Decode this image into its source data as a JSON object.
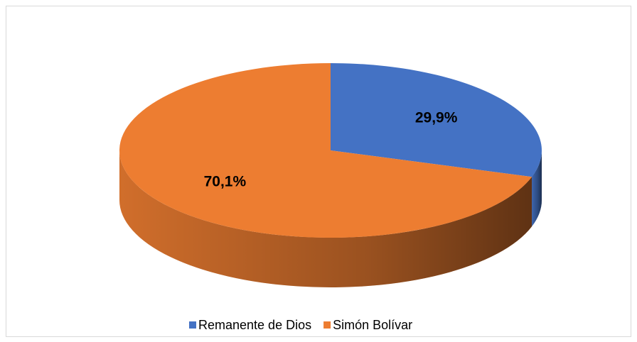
{
  "chart_data": {
    "type": "pie",
    "categories": [
      "Remanente de Dios",
      "Simón Bolívar"
    ],
    "values": [
      29.9,
      70.1
    ],
    "value_labels": [
      "29,9%",
      "70,1%"
    ],
    "colors": [
      "#4472c4",
      "#ed7d31"
    ],
    "legend": "bottom"
  }
}
